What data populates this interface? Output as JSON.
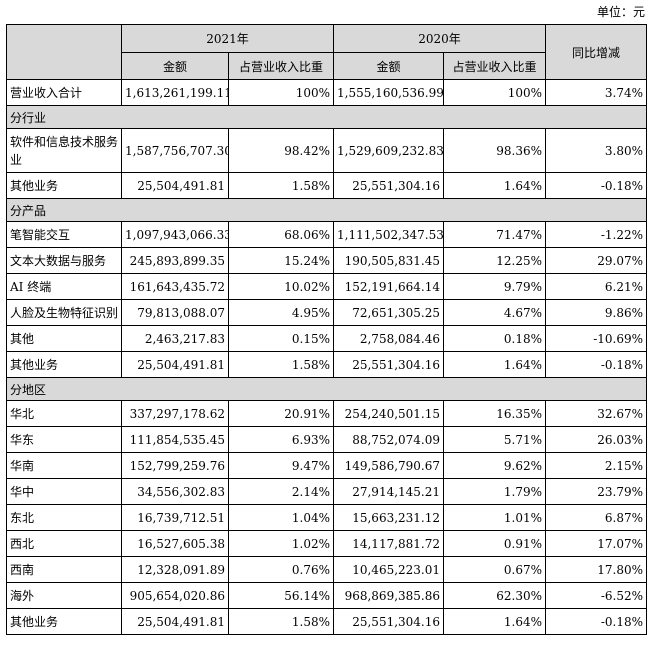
{
  "unit": "单位：元",
  "header": {
    "year_2021": "2021年",
    "year_2020": "2020年",
    "amount": "金额",
    "ratio": "占营业收入比重",
    "yoy": "同比增减"
  },
  "total": {
    "label": "营业收入合计",
    "a2021": "1,613,261,199.11",
    "r2021": "100%",
    "a2020": "1,555,160,536.99",
    "r2020": "100%",
    "yoy": "3.74%"
  },
  "sections": [
    {
      "title": "分行业",
      "rows": [
        {
          "label": "软件和信息技术服务业",
          "a2021": "1,587,756,707.30",
          "r2021": "98.42%",
          "a2020": "1,529,609,232.83",
          "r2020": "98.36%",
          "yoy": "3.80%"
        },
        {
          "label": "其他业务",
          "a2021": "25,504,491.81",
          "r2021": "1.58%",
          "a2020": "25,551,304.16",
          "r2020": "1.64%",
          "yoy": "-0.18%"
        }
      ]
    },
    {
      "title": "分产品",
      "rows": [
        {
          "label": "笔智能交互",
          "a2021": "1,097,943,066.33",
          "r2021": "68.06%",
          "a2020": "1,111,502,347.53",
          "r2020": "71.47%",
          "yoy": "-1.22%"
        },
        {
          "label": "文本大数据与服务",
          "a2021": "245,893,899.35",
          "r2021": "15.24%",
          "a2020": "190,505,831.45",
          "r2020": "12.25%",
          "yoy": "29.07%"
        },
        {
          "label": "AI 终端",
          "a2021": "161,643,435.72",
          "r2021": "10.02%",
          "a2020": "152,191,664.14",
          "r2020": "9.79%",
          "yoy": "6.21%"
        },
        {
          "label": "人脸及生物特征识别",
          "a2021": "79,813,088.07",
          "r2021": "4.95%",
          "a2020": "72,651,305.25",
          "r2020": "4.67%",
          "yoy": "9.86%"
        },
        {
          "label": "其他",
          "a2021": "2,463,217.83",
          "r2021": "0.15%",
          "a2020": "2,758,084.46",
          "r2020": "0.18%",
          "yoy": "-10.69%"
        },
        {
          "label": "其他业务",
          "a2021": "25,504,491.81",
          "r2021": "1.58%",
          "a2020": "25,551,304.16",
          "r2020": "1.64%",
          "yoy": "-0.18%"
        }
      ]
    },
    {
      "title": "分地区",
      "rows": [
        {
          "label": "华北",
          "a2021": "337,297,178.62",
          "r2021": "20.91%",
          "a2020": "254,240,501.15",
          "r2020": "16.35%",
          "yoy": "32.67%"
        },
        {
          "label": "华东",
          "a2021": "111,854,535.45",
          "r2021": "6.93%",
          "a2020": "88,752,074.09",
          "r2020": "5.71%",
          "yoy": "26.03%"
        },
        {
          "label": "华南",
          "a2021": "152,799,259.76",
          "r2021": "9.47%",
          "a2020": "149,586,790.67",
          "r2020": "9.62%",
          "yoy": "2.15%"
        },
        {
          "label": "华中",
          "a2021": "34,556,302.83",
          "r2021": "2.14%",
          "a2020": "27,914,145.21",
          "r2020": "1.79%",
          "yoy": "23.79%"
        },
        {
          "label": "东北",
          "a2021": "16,739,712.51",
          "r2021": "1.04%",
          "a2020": "15,663,231.12",
          "r2020": "1.01%",
          "yoy": "6.87%"
        },
        {
          "label": "西北",
          "a2021": "16,527,605.38",
          "r2021": "1.02%",
          "a2020": "14,117,881.72",
          "r2020": "0.91%",
          "yoy": "17.07%"
        },
        {
          "label": "西南",
          "a2021": "12,328,091.89",
          "r2021": "0.76%",
          "a2020": "10,465,223.01",
          "r2020": "0.67%",
          "yoy": "17.80%"
        },
        {
          "label": "海外",
          "a2021": "905,654,020.86",
          "r2021": "56.14%",
          "a2020": "968,869,385.86",
          "r2020": "62.30%",
          "yoy": "-6.52%"
        },
        {
          "label": "其他业务",
          "a2021": "25,504,491.81",
          "r2021": "1.58%",
          "a2020": "25,551,304.16",
          "r2020": "1.64%",
          "yoy": "-0.18%"
        }
      ]
    }
  ]
}
